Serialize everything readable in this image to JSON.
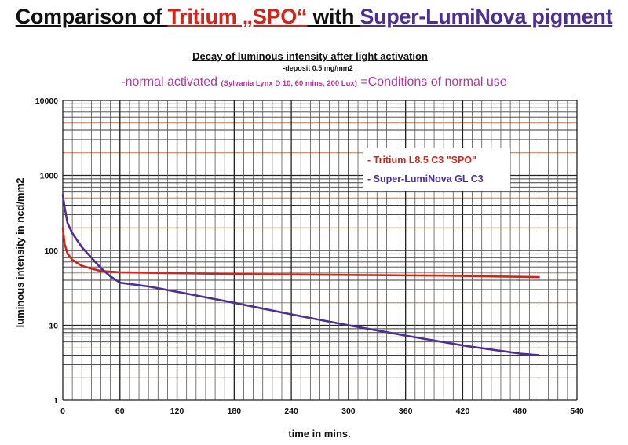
{
  "header": {
    "title_part1": "Comparison of ",
    "title_part2": "Tritium „SPO“",
    "title_part3": " with ",
    "title_part4": "Super-LumiNova pigment",
    "subtitle": "Decay of luminous intensity after light activation",
    "deposit": "-deposit 0.5 mg/mm2",
    "condition_start": "-normal activated ",
    "condition_detail": "(Sylvania Lynx D 10, 60 mins, 200 Lux)",
    "condition_end": " =Conditions of normal use"
  },
  "colors": {
    "tritium": "#d0251c",
    "luminova": "#4d2f94",
    "grid_major": "#b07a55",
    "grid_minor": "#3a3a3a"
  },
  "chart_data": {
    "type": "line",
    "xlabel": "time in mins.",
    "ylabel": "luminous intensity in ncd/mm2",
    "xlim": [
      0,
      540
    ],
    "ylim": [
      1,
      10000
    ],
    "yscale": "log",
    "grid": true,
    "legend_placement": "upper-right",
    "x_ticks": [
      "0",
      "60",
      "120",
      "180",
      "240",
      "300",
      "360",
      "420",
      "480",
      "540"
    ],
    "y_ticks": [
      "1",
      "10",
      "100",
      "1000",
      "10000"
    ],
    "series": [
      {
        "name": "- Tritium L8.5 C3 \"SPO\"",
        "color": "#d0251c",
        "x": [
          0,
          2,
          5,
          10,
          15,
          20,
          30,
          40,
          60,
          100,
          150,
          200,
          300,
          400,
          500
        ],
        "y": [
          200,
          120,
          90,
          75,
          68,
          62,
          57,
          53,
          51,
          50,
          49,
          48,
          47,
          46,
          44
        ]
      },
      {
        "name": "- Super-LumiNova GL C3",
        "color": "#4d2f94",
        "x": [
          0,
          2,
          5,
          10,
          20,
          30,
          40,
          50,
          60,
          90,
          120,
          180,
          240,
          300,
          360,
          420,
          480,
          500
        ],
        "y": [
          550,
          370,
          230,
          170,
          110,
          80,
          58,
          45,
          37,
          33,
          28,
          20,
          14,
          10,
          7.3,
          5.4,
          4.2,
          4
        ]
      }
    ]
  }
}
